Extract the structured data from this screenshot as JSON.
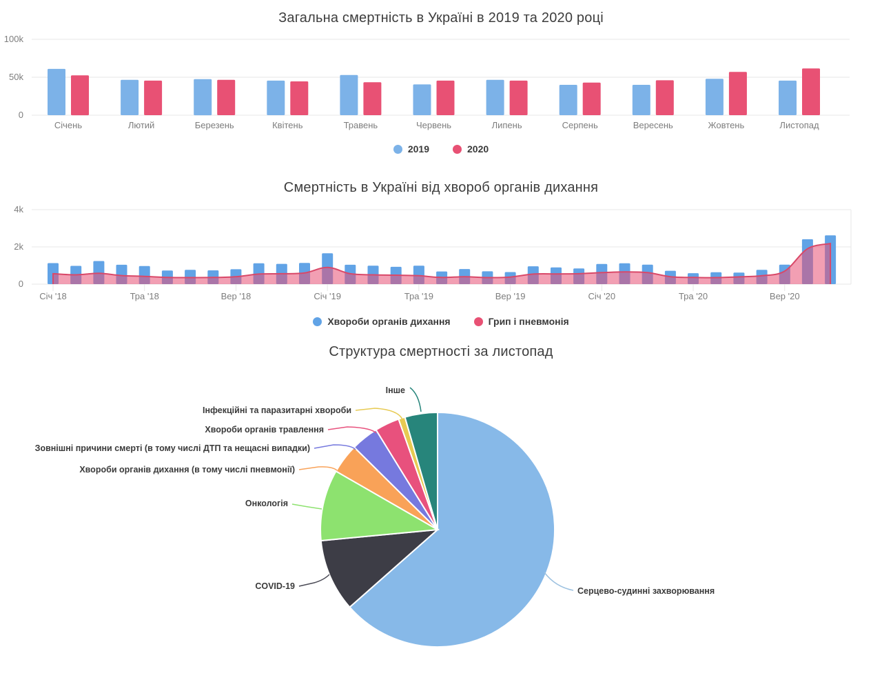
{
  "page": {
    "background": "#ffffff"
  },
  "chart_data": [
    {
      "type": "bar",
      "key": "total-mortality",
      "title": "Загальна смертність в Україні в 2019 та 2020 році",
      "categories": [
        "Січень",
        "Лютий",
        "Березень",
        "Квітень",
        "Травень",
        "Червень",
        "Липень",
        "Серпень",
        "Вересень",
        "Жовтень",
        "Листопад"
      ],
      "series": [
        {
          "key": "y2019",
          "name": "2019",
          "color": "#7cb2e8",
          "values": [
            61000,
            46500,
            47500,
            45500,
            53000,
            40500,
            46500,
            40000,
            40000,
            48000,
            45500
          ]
        },
        {
          "key": "y2020",
          "name": "2020",
          "color": "#e85174",
          "values": [
            52500,
            45500,
            46500,
            44500,
            43500,
            45500,
            45500,
            43000,
            46000,
            57000,
            61500
          ]
        }
      ],
      "ylim": [
        0,
        100000
      ],
      "yticks": [
        {
          "value": 0,
          "label": "0"
        },
        {
          "value": 50000,
          "label": "50k"
        },
        {
          "value": 100000,
          "label": "100k"
        }
      ],
      "grid": "horizontal",
      "legend_position": "bottom"
    },
    {
      "type": "bar+area",
      "key": "respiratory-mortality",
      "title": "Смертність в Україні від хвороб органів дихання",
      "points": 35,
      "x_range": "Січ '18 — Лис '20 (помісячно)",
      "x_tick_labels": [
        "Січ '18",
        "Тра '18",
        "Вер '18",
        "Січ '19",
        "Тра '19",
        "Вер '19",
        "Січ '20",
        "Тра '20",
        "Вер '20"
      ],
      "x_tick_indices": [
        0,
        4,
        8,
        12,
        16,
        20,
        24,
        28,
        32
      ],
      "series": [
        {
          "key": "respiratory",
          "name": "Хвороби органів дихання",
          "type": "bar",
          "color": "#61a3e6",
          "values": [
            1130,
            980,
            1240,
            1040,
            970,
            730,
            770,
            740,
            800,
            1120,
            1090,
            1140,
            1660,
            1040,
            990,
            930,
            990,
            680,
            810,
            690,
            650,
            960,
            900,
            840,
            1080,
            1120,
            1050,
            720,
            590,
            640,
            620,
            770,
            1050,
            2410,
            2620
          ]
        },
        {
          "key": "flu_pneumonia",
          "name": "Грип і пневмонія",
          "type": "area",
          "color": "#e85174",
          "fill_opacity": 0.55,
          "line_color": "#d94868",
          "values": [
            560,
            500,
            580,
            460,
            420,
            360,
            350,
            360,
            400,
            540,
            560,
            600,
            900,
            560,
            500,
            480,
            450,
            360,
            400,
            350,
            380,
            540,
            550,
            560,
            620,
            660,
            620,
            400,
            360,
            350,
            390,
            450,
            700,
            1900,
            2180
          ]
        }
      ],
      "ylim": [
        0,
        4000
      ],
      "yticks": [
        {
          "value": 0,
          "label": "0"
        },
        {
          "value": 2000,
          "label": "2k"
        },
        {
          "value": 4000,
          "label": "4k"
        }
      ],
      "grid": "horizontal",
      "legend_position": "bottom"
    },
    {
      "type": "pie",
      "key": "mortality-structure",
      "title": "Структура смертності за листопад",
      "start_angle_deg": 0,
      "direction": "clockwise",
      "slices": [
        {
          "key": "cardio",
          "label": "Серцево-судинні захворювання",
          "percent": 63.5,
          "color": "#87b9e8"
        },
        {
          "key": "covid19",
          "label": "COVID-19",
          "percent": 10.0,
          "color": "#3d3d46"
        },
        {
          "key": "oncology",
          "label": "Онкологія",
          "percent": 9.8,
          "color": "#8de26f"
        },
        {
          "key": "respiratory",
          "label": "Хвороби органів дихання (в тому числі пневмонії)",
          "percent": 4.1,
          "color": "#f9a258"
        },
        {
          "key": "external",
          "label": "Зовнішні причини смерті (в тому числі ДТП та нещасні випадки)",
          "percent": 3.8,
          "color": "#7679de"
        },
        {
          "key": "digestive",
          "label": "Хвороби органів травлення",
          "percent": 3.4,
          "color": "#e8517d"
        },
        {
          "key": "infectious",
          "label": "Інфекційні та паразитарні хвороби",
          "percent": 0.9,
          "color": "#e7ca52"
        },
        {
          "key": "other",
          "label": "Інше",
          "percent": 4.5,
          "color": "#27857b"
        }
      ]
    }
  ]
}
